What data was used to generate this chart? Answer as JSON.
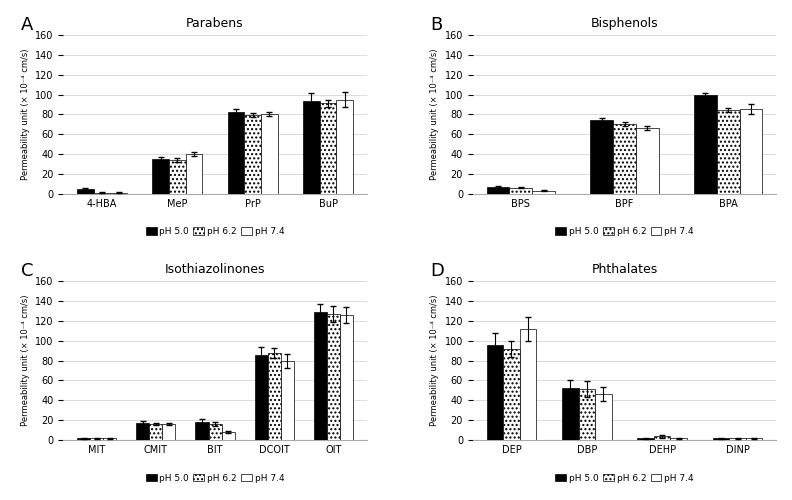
{
  "panels": [
    {
      "label": "A",
      "title": "Parabens",
      "categories": [
        "4-HBA",
        "MeP",
        "PrP",
        "BuP"
      ],
      "values_ph50": [
        5,
        35,
        82,
        94
      ],
      "values_ph62": [
        1,
        34,
        79,
        91
      ],
      "values_ph74": [
        1,
        40,
        80,
        95
      ],
      "errors_ph50": [
        1,
        2,
        3,
        8
      ],
      "errors_ph62": [
        0.5,
        2,
        2,
        4
      ],
      "errors_ph74": [
        0.5,
        2,
        2,
        8
      ]
    },
    {
      "label": "B",
      "title": "Bisphenols",
      "categories": [
        "BPS",
        "BPF",
        "BPA"
      ],
      "values_ph50": [
        7,
        74,
        100
      ],
      "values_ph62": [
        6,
        70,
        84
      ],
      "values_ph74": [
        3,
        66,
        85
      ],
      "errors_ph50": [
        1,
        2,
        2
      ],
      "errors_ph62": [
        0.5,
        2,
        2
      ],
      "errors_ph74": [
        0.5,
        2,
        5
      ]
    },
    {
      "label": "C",
      "title": "Isothiazolinones",
      "categories": [
        "MIT",
        "CMIT",
        "BIT",
        "DCOIT",
        "OIT"
      ],
      "values_ph50": [
        2,
        17,
        18,
        86,
        129
      ],
      "values_ph62": [
        2,
        16,
        16,
        88,
        127
      ],
      "values_ph74": [
        2,
        16,
        8,
        80,
        126
      ],
      "errors_ph50": [
        0.5,
        2,
        3,
        8,
        8
      ],
      "errors_ph62": [
        0.5,
        1,
        2,
        5,
        8
      ],
      "errors_ph74": [
        0.5,
        1,
        1,
        7,
        8
      ]
    },
    {
      "label": "D",
      "title": "Phthalates",
      "categories": [
        "DEP",
        "DBP",
        "DEHP",
        "DINP"
      ],
      "values_ph50": [
        96,
        52,
        2,
        2
      ],
      "values_ph62": [
        92,
        51,
        4,
        2
      ],
      "values_ph74": [
        112,
        46,
        2,
        2
      ],
      "errors_ph50": [
        12,
        8,
        0.5,
        0.5
      ],
      "errors_ph62": [
        8,
        8,
        1.5,
        0.5
      ],
      "errors_ph74": [
        12,
        7,
        0.5,
        0.5
      ]
    }
  ],
  "ylim": [
    0,
    160
  ],
  "yticks": [
    0,
    20,
    40,
    60,
    80,
    100,
    120,
    140,
    160
  ],
  "ylabel": "Permeability unit (× 10⁻⁴ cm/s)",
  "legend_labels": [
    "pH 5.0",
    "pH 6.2",
    "pH 7.4"
  ],
  "bar_width": 0.22,
  "color_ph50": "#000000",
  "color_ph62": "#ffffff",
  "color_ph74": "#ffffff",
  "hatch_ph50": "",
  "hatch_ph62": "....",
  "hatch_ph74": "====",
  "background_color": "#ffffff",
  "grid_color": "#cccccc"
}
